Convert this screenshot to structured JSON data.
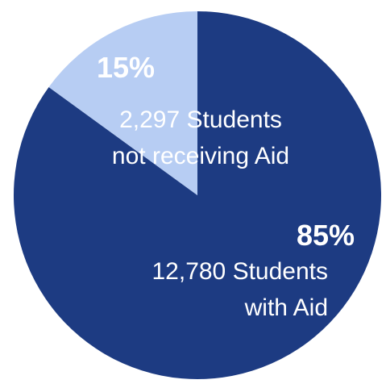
{
  "chart_data": {
    "type": "pie",
    "slices": [
      {
        "percent_label": "85%",
        "value": 85,
        "label_lines": [
          "12,780 Students",
          "with Aid"
        ],
        "color": "#1d3b82",
        "text_color": "#ffffff",
        "percent_color": "#ffffff"
      },
      {
        "percent_label": "15%",
        "value": 15,
        "label_lines": [
          "2,297 Students",
          "not receiving Aid"
        ],
        "color": "#b7cdf3",
        "text_color": "#ffffff",
        "percent_color": "#ffffff"
      }
    ]
  }
}
